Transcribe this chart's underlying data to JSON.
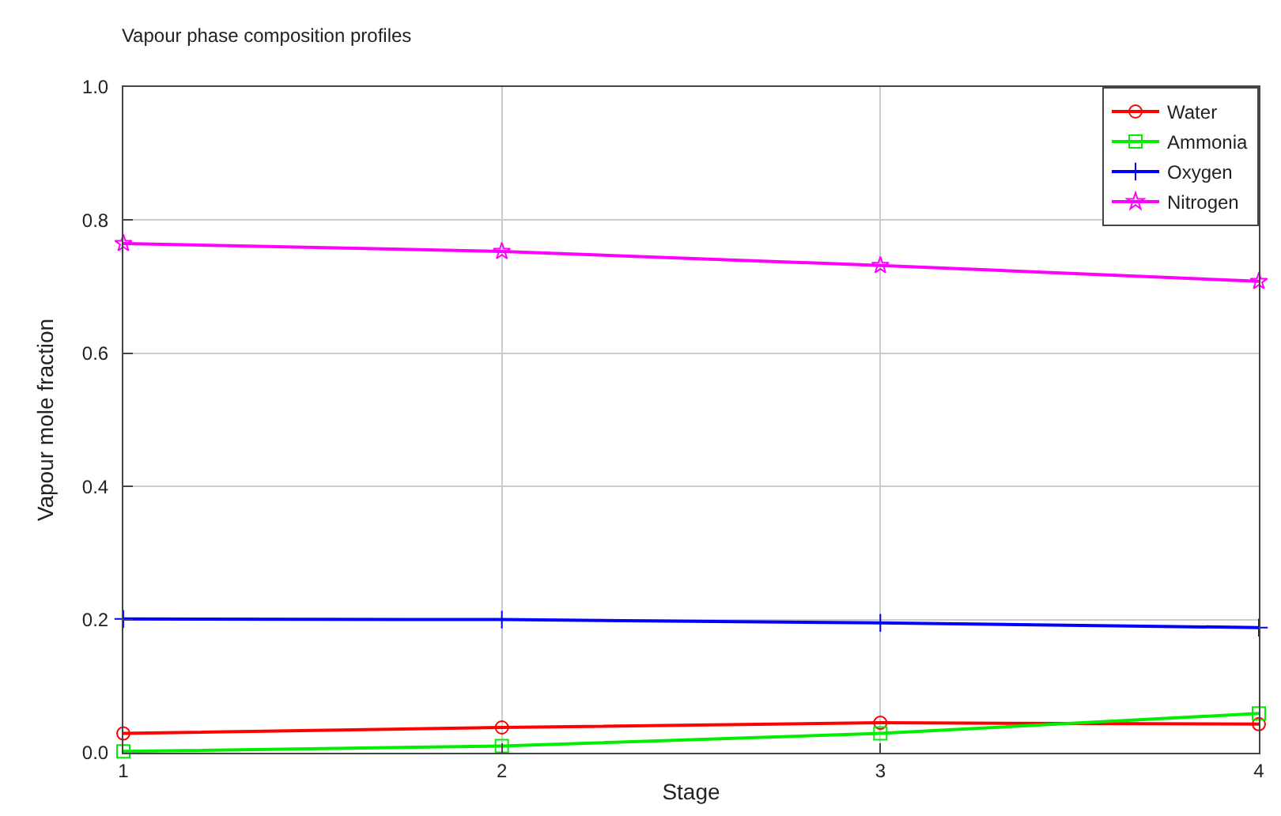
{
  "chart_data": {
    "type": "line",
    "title": "Vapour phase composition profiles",
    "xlabel": "Stage",
    "ylabel": "Vapour mole fraction",
    "x": [
      1,
      2,
      3,
      4
    ],
    "xlim": [
      1,
      4
    ],
    "xticks": [
      1,
      2,
      3,
      4
    ],
    "ylim": [
      0,
      1
    ],
    "yticks": [
      {
        "value": 0,
        "label": "0.0"
      },
      0.2,
      0.4,
      0.6,
      0.8,
      {
        "value": 1,
        "label": "1.0"
      }
    ],
    "grid": true,
    "legend": "top right",
    "line_style": "solid",
    "series": [
      {
        "name": "Water",
        "color": "#ff0000",
        "marker": "circle",
        "values": [
          0.029,
          0.038,
          0.045,
          0.043
        ]
      },
      {
        "name": "Ammonia",
        "color": "#00ee00",
        "marker": "square",
        "values": [
          0.002,
          0.01,
          0.029,
          0.059
        ]
      },
      {
        "name": "Oxygen",
        "color": "#0000ff",
        "marker": "cross",
        "values": [
          0.201,
          0.2,
          0.195,
          0.188
        ]
      },
      {
        "name": "Nitrogen",
        "color": "#ff00ff",
        "marker": "star",
        "values": [
          0.765,
          0.753,
          0.732,
          0.708
        ]
      }
    ]
  }
}
